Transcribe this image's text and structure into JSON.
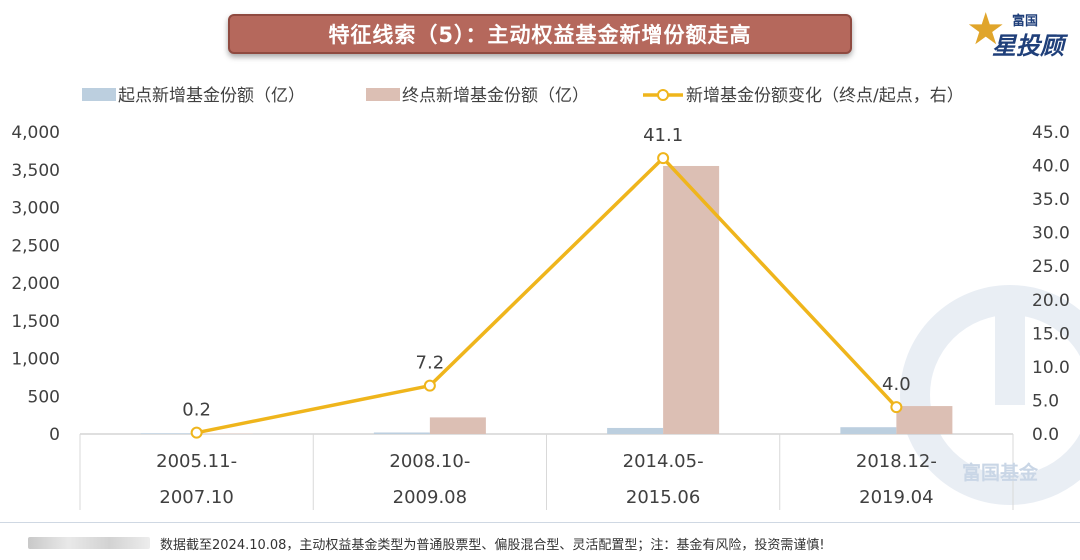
{
  "title": "特征线索（5）：主动权益基金新增份额走高",
  "logo": {
    "top_text": "富国",
    "main_text": "星投顾"
  },
  "watermark": "富国基金",
  "footer_note": "数据截至2024.10.08，主动权益基金类型为普通股票型、偏股混合型、灵活配置型；注：基金有风险，投资需谨慎!",
  "colors": {
    "start_bar": "#bccfdf",
    "end_bar": "#dcbfb4",
    "line": "#efb51c",
    "title_bg": "#b5685c"
  },
  "chart_data": {
    "type": "bar",
    "categories": [
      [
        "2005.11-",
        "2007.10"
      ],
      [
        "2008.10-",
        "2009.08"
      ],
      [
        "2014.05-",
        "2015.06"
      ],
      [
        "2018.12-",
        "2019.04"
      ]
    ],
    "series": [
      {
        "name": "起点新增基金份额（亿）",
        "type": "bar",
        "axis": "left",
        "values": [
          10,
          20,
          80,
          90
        ]
      },
      {
        "name": "终点新增基金份额（亿）",
        "type": "bar",
        "axis": "left",
        "values": [
          5,
          220,
          3550,
          370
        ]
      },
      {
        "name": "新增基金份额变化（终点/起点，右）",
        "type": "line",
        "axis": "right",
        "values": [
          0.2,
          7.2,
          41.1,
          4.0
        ],
        "labels": [
          "0.2",
          "7.2",
          "41.1",
          "4.0"
        ]
      }
    ],
    "left_axis": {
      "min": 0,
      "max": 4000,
      "ticks": [
        "0",
        "500",
        "1,000",
        "1,500",
        "2,000",
        "2,500",
        "3,000",
        "3,500",
        "4,000"
      ]
    },
    "right_axis": {
      "min": 0,
      "max": 45,
      "ticks": [
        "0.0",
        "5.0",
        "10.0",
        "15.0",
        "20.0",
        "25.0",
        "30.0",
        "35.0",
        "40.0",
        "45.0"
      ]
    },
    "legend_position": "top"
  }
}
